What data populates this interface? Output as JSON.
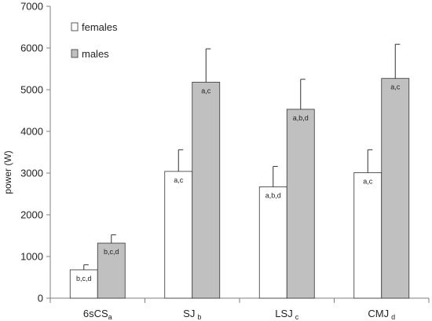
{
  "chart_data": {
    "type": "bar",
    "ylabel": "power (W)",
    "ylim": [
      0,
      7000
    ],
    "yticks": [
      0,
      1000,
      2000,
      3000,
      4000,
      5000,
      6000,
      7000
    ],
    "grid": false,
    "legend_position": "top-left",
    "categories": [
      {
        "label": "6sCS",
        "sub": "a"
      },
      {
        "label": "SJ",
        "sub": "b"
      },
      {
        "label": "LSJ",
        "sub": "c"
      },
      {
        "label": "CMJ",
        "sub": "d"
      }
    ],
    "series": [
      {
        "name": "females",
        "color": "#ffffff",
        "values": [
          680,
          3040,
          2670,
          3010
        ],
        "errors": [
          120,
          520,
          490,
          550
        ],
        "annotations": [
          "b,c,d",
          "a,c",
          "a,b,d",
          "a,c"
        ]
      },
      {
        "name": "males",
        "color": "#c0c0c0",
        "values": [
          1320,
          5180,
          4530,
          5270
        ],
        "errors": [
          200,
          800,
          720,
          820
        ],
        "annotations": [
          "b,c,d",
          "a,c",
          "a,b,d",
          "a,c"
        ]
      }
    ]
  }
}
